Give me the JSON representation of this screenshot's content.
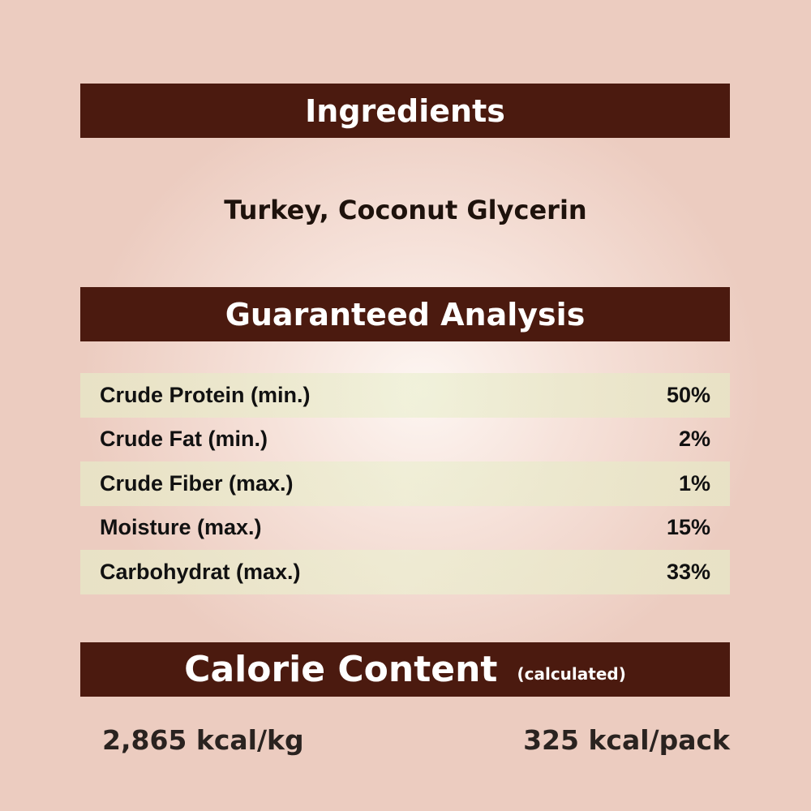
{
  "ingredients": {
    "heading": "Ingredients",
    "text": "Turkey, Coconut Glycerin"
  },
  "analysis": {
    "heading": "Guaranteed Analysis",
    "rows": [
      {
        "label": "Crude Protein (min.)",
        "value": "50%"
      },
      {
        "label": "Crude Fat (min.)",
        "value": "2%"
      },
      {
        "label": "Crude Fiber (max.)",
        "value": "1%"
      },
      {
        "label": "Moisture (max.)",
        "value": "15%"
      },
      {
        "label": "Carbohydrat (max.)",
        "value": "33%"
      }
    ]
  },
  "calorie": {
    "heading": "Calorie Content",
    "note": "(calculated)",
    "per_kg": "2,865 kcal/kg",
    "per_pack": "325 kcal/pack"
  },
  "colors": {
    "banner": "#4b1a0f",
    "background": "#ecccc0"
  }
}
